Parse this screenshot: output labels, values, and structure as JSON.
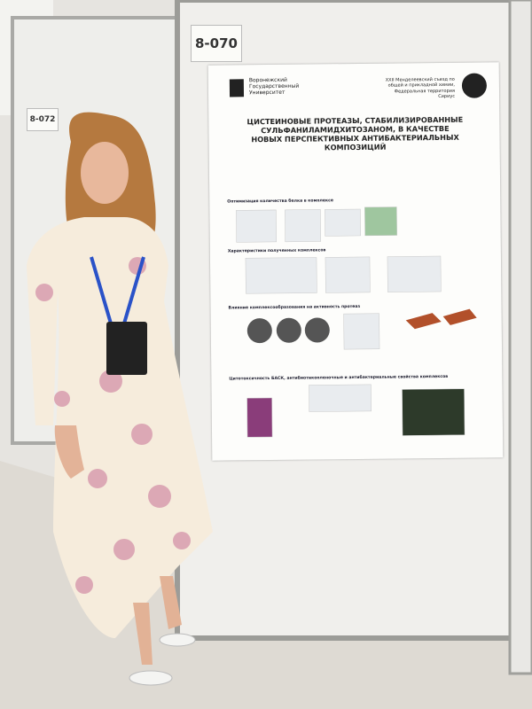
{
  "booth_labels": [
    "8-070",
    "8-072"
  ],
  "poster": {
    "university": "Воронежский Государственный Университет",
    "congress": "XXII Менделеевский съезд по общей и прикладной химии, Федеральная территория Сириус",
    "title": "ЦИСТЕИНОВЫЕ ПРОТЕАЗЫ, СТАБИЛИЗИРОВАННЫЕ СУЛЬФАНИЛАМИДХИТОЗАНОМ, В КАЧЕСТВЕ НОВЫХ ПЕРСПЕКТИВНЫХ АНТИБАКТЕРИАЛЬНЫХ КОМПОЗИЦИЙ",
    "sections": [
      "Оптимизация количества белка в комплексе",
      "Характеристики полученных комплексов",
      "Влияние комплексообразования на активность протеаз",
      "Цитотоксичность БАСК, антибиотикопленочные и антибактериальные свойства комплексов"
    ]
  }
}
